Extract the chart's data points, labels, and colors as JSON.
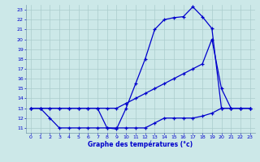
{
  "title": "Graphe des températures (°c)",
  "bg_color": "#cce8e8",
  "grid_color": "#aacccc",
  "line_color": "#0000cc",
  "ylabel_color": "#0000cc",
  "ylim_min": 11,
  "ylim_max": 23,
  "xlim_min": 0,
  "xlim_max": 23,
  "yticks": [
    11,
    12,
    13,
    14,
    15,
    16,
    17,
    18,
    19,
    20,
    21,
    22,
    23
  ],
  "xticks": [
    0,
    1,
    2,
    3,
    4,
    5,
    6,
    7,
    8,
    9,
    10,
    11,
    12,
    13,
    14,
    15,
    16,
    17,
    18,
    19,
    20,
    21,
    22,
    23
  ],
  "series1_x": [
    0,
    1,
    2,
    3,
    4,
    5,
    6,
    7,
    8,
    9,
    10,
    11,
    12,
    13,
    14,
    15,
    16,
    17,
    18,
    19,
    20,
    21,
    22,
    23
  ],
  "series1_y": [
    13,
    13,
    13,
    13,
    13,
    13,
    13,
    13,
    11,
    10.9,
    13,
    15.5,
    18,
    21,
    22,
    22.2,
    22.3,
    23.3,
    22.3,
    21.1,
    13,
    13,
    13,
    13
  ],
  "series2_x": [
    0,
    1,
    2,
    3,
    4,
    5,
    6,
    7,
    8,
    9,
    10,
    11,
    12,
    13,
    14,
    15,
    16,
    17,
    18,
    19,
    20,
    21,
    22,
    23
  ],
  "series2_y": [
    13,
    13,
    13,
    13,
    13,
    13,
    13,
    13,
    13,
    13,
    13.5,
    14,
    14.5,
    15,
    15.5,
    16,
    16.5,
    17,
    17.5,
    20,
    15,
    13,
    13,
    13
  ],
  "series3_x": [
    0,
    1,
    2,
    3,
    4,
    5,
    6,
    7,
    8,
    9,
    10,
    11,
    12,
    13,
    14,
    15,
    16,
    17,
    18,
    19,
    20,
    21,
    22,
    23
  ],
  "series3_y": [
    13,
    13,
    12,
    11,
    11,
    11,
    11,
    11,
    11,
    11,
    11,
    11,
    11,
    11.5,
    12,
    12,
    12,
    12,
    12.2,
    12.5,
    13,
    13,
    13,
    13
  ]
}
